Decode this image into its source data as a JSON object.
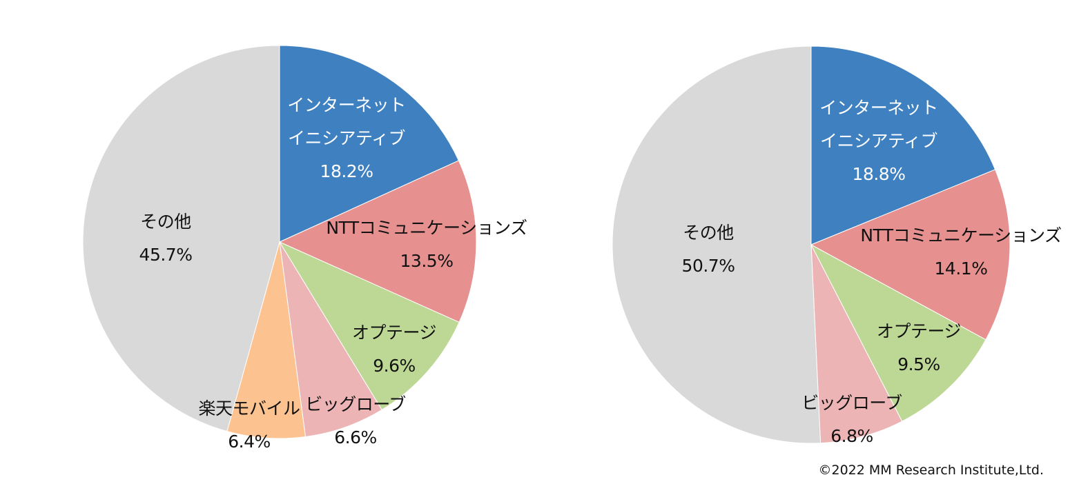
{
  "chart_data": [
    {
      "type": "pie",
      "title": "",
      "categories": [
        "インターネットイニシアティブ",
        "NTTコミュニケーションズ",
        "オプテージ",
        "ビッグローブ",
        "楽天モバイル",
        "その他"
      ],
      "values": [
        18.2,
        13.5,
        9.6,
        6.6,
        6.4,
        45.7
      ],
      "unit": "%",
      "colors": [
        "#3E80C0",
        "#E69090",
        "#BDD795",
        "#EDB4B6",
        "#FCC290",
        "#D9D9D9"
      ],
      "labels": [
        {
          "line1": "インターネット",
          "line2": "イニシアティブ",
          "value": "18.2%"
        },
        {
          "line1": "NTTコミュニケーションズ",
          "value": "13.5%"
        },
        {
          "line1": "オプテージ",
          "value": "9.6%"
        },
        {
          "line1": "ビッグローブ",
          "value": "6.6%"
        },
        {
          "line1": "楽天モバイル",
          "value": "6.4%"
        },
        {
          "line1": "その他",
          "value": "45.7%"
        }
      ],
      "legend": "none",
      "start_angle": "12 o'clock, clockwise"
    },
    {
      "type": "pie",
      "title": "",
      "categories": [
        "インターネットイニシアティブ",
        "NTTコミュニケーションズ",
        "オプテージ",
        "ビッグローブ",
        "その他"
      ],
      "values": [
        18.8,
        14.1,
        9.5,
        6.8,
        50.7
      ],
      "unit": "%",
      "colors": [
        "#3E80C0",
        "#E69090",
        "#BDD795",
        "#EDB4B6",
        "#D9D9D9"
      ],
      "labels": [
        {
          "line1": "インターネット",
          "line2": "イニシアティブ",
          "value": "18.8%"
        },
        {
          "line1": "NTTコミュニケーションズ",
          "value": "14.1%"
        },
        {
          "line1": "オプテージ",
          "value": "9.5%"
        },
        {
          "line1": "ビッグローブ",
          "value": "6.8%"
        },
        {
          "line1": "その他",
          "value": "50.7%"
        }
      ],
      "legend": "none",
      "start_angle": "12 o'clock, clockwise"
    }
  ],
  "footer": {
    "copyright": "©2022 MM Research Institute,Ltd."
  }
}
